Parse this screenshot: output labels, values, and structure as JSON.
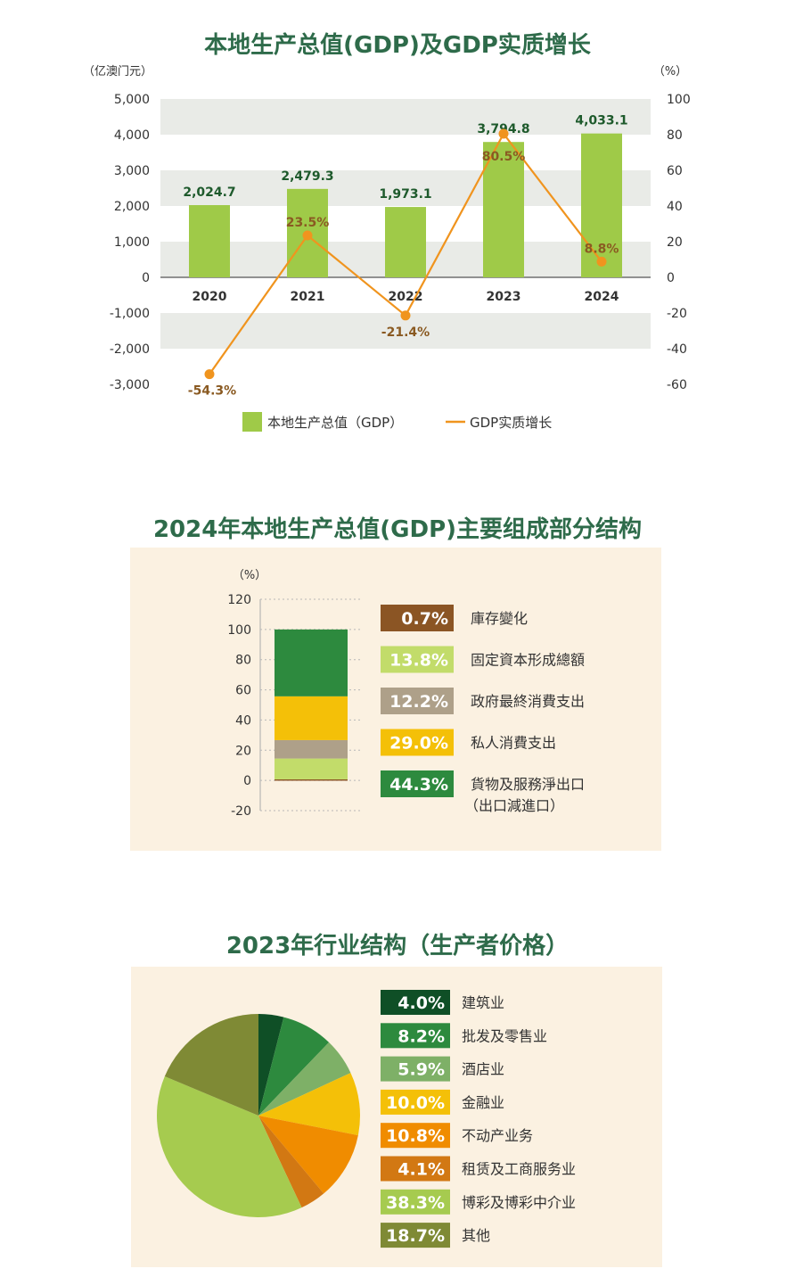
{
  "colors": {
    "title": "#2e6b4a",
    "band": "#e9ebe7",
    "bar": "#9fca48",
    "line": "#f0941e",
    "label_dark": "#1e5a2c",
    "label_brown": "#8a5a22",
    "panel": "#fbf1e1"
  },
  "chart_data": [
    {
      "type": "bar",
      "title": "本地生产总值(GDP)及GDP实质增长",
      "y_unit_left": "（亿澳门元）",
      "y_unit_right": "（%）",
      "categories": [
        "2020",
        "2021",
        "2022",
        "2023",
        "2024"
      ],
      "series": [
        {
          "name": "本地生产总值（GDP）",
          "type": "bar",
          "axis": "left",
          "values": [
            2024.7,
            2479.3,
            1973.1,
            3794.8,
            4033.1
          ],
          "labels": [
            "2,024.7",
            "2,479.3",
            "1,973.1",
            "3,794.8",
            "4,033.1"
          ]
        },
        {
          "name": "GDP实质增长",
          "type": "line",
          "axis": "right",
          "values": [
            -54.3,
            23.5,
            -21.4,
            80.5,
            8.8
          ],
          "labels": [
            "-54.3%",
            "23.5%",
            "-21.4%",
            "80.5%",
            "8.8%"
          ]
        }
      ],
      "ylim_left": [
        -3000,
        5000
      ],
      "yticks_left": [
        "5,000",
        "4,000",
        "3,000",
        "2,000",
        "1,000",
        "0",
        "-1,000",
        "-2,000",
        "-3,000"
      ],
      "ylim_right": [
        -60,
        100
      ],
      "yticks_right": [
        "100",
        "80",
        "60",
        "40",
        "20",
        "0",
        "-20",
        "-40",
        "-60"
      ],
      "legend": [
        "本地生产总值（GDP）",
        "GDP实质增长"
      ]
    },
    {
      "type": "bar",
      "stacked": true,
      "title": "2024年本地生产总值(GDP)主要组成部分结构",
      "y_unit": "（%）",
      "ylim": [
        -20,
        120
      ],
      "yticks": [
        "120",
        "100",
        "80",
        "60",
        "40",
        "20",
        "0",
        "-20"
      ],
      "components": [
        {
          "name": "庫存變化",
          "value": 0.7,
          "label": "0.7%",
          "color": "#8b5524"
        },
        {
          "name": "固定資本形成總額",
          "value": 13.8,
          "label": "13.8%",
          "color": "#c2dc6a"
        },
        {
          "name": "政府最終消費支出",
          "value": 12.2,
          "label": "12.2%",
          "color": "#aea089"
        },
        {
          "name": "私人消費支出",
          "value": 29.0,
          "label": "29.0%",
          "color": "#f4c008"
        },
        {
          "name": "貨物及服務淨出口",
          "name2": "（出口減進口）",
          "value": 44.3,
          "label": "44.3%",
          "color": "#2d8a3e"
        }
      ]
    },
    {
      "type": "pie",
      "title": "2023年行业结构（生产者价格）",
      "slices": [
        {
          "name": "建筑业",
          "value": 4.0,
          "label": "4.0%",
          "color": "#0f4f26"
        },
        {
          "name": "批发及零售业",
          "value": 8.2,
          "label": "8.2%",
          "color": "#2d8a3e"
        },
        {
          "name": "酒店业",
          "value": 5.9,
          "label": "5.9%",
          "color": "#7eb067"
        },
        {
          "name": "金融业",
          "value": 10.0,
          "label": "10.0%",
          "color": "#f4c008"
        },
        {
          "name": "不动产业务",
          "value": 10.8,
          "label": "10.8%",
          "color": "#f08c00"
        },
        {
          "name": "租赁及工商服务业",
          "value": 4.1,
          "label": "4.1%",
          "color": "#d27813"
        },
        {
          "name": "博彩及博彩中介业",
          "value": 38.3,
          "label": "38.3%",
          "color": "#a6cb4f"
        },
        {
          "name": "其他",
          "value": 18.7,
          "label": "18.7%",
          "color": "#7f8a35"
        }
      ]
    }
  ]
}
